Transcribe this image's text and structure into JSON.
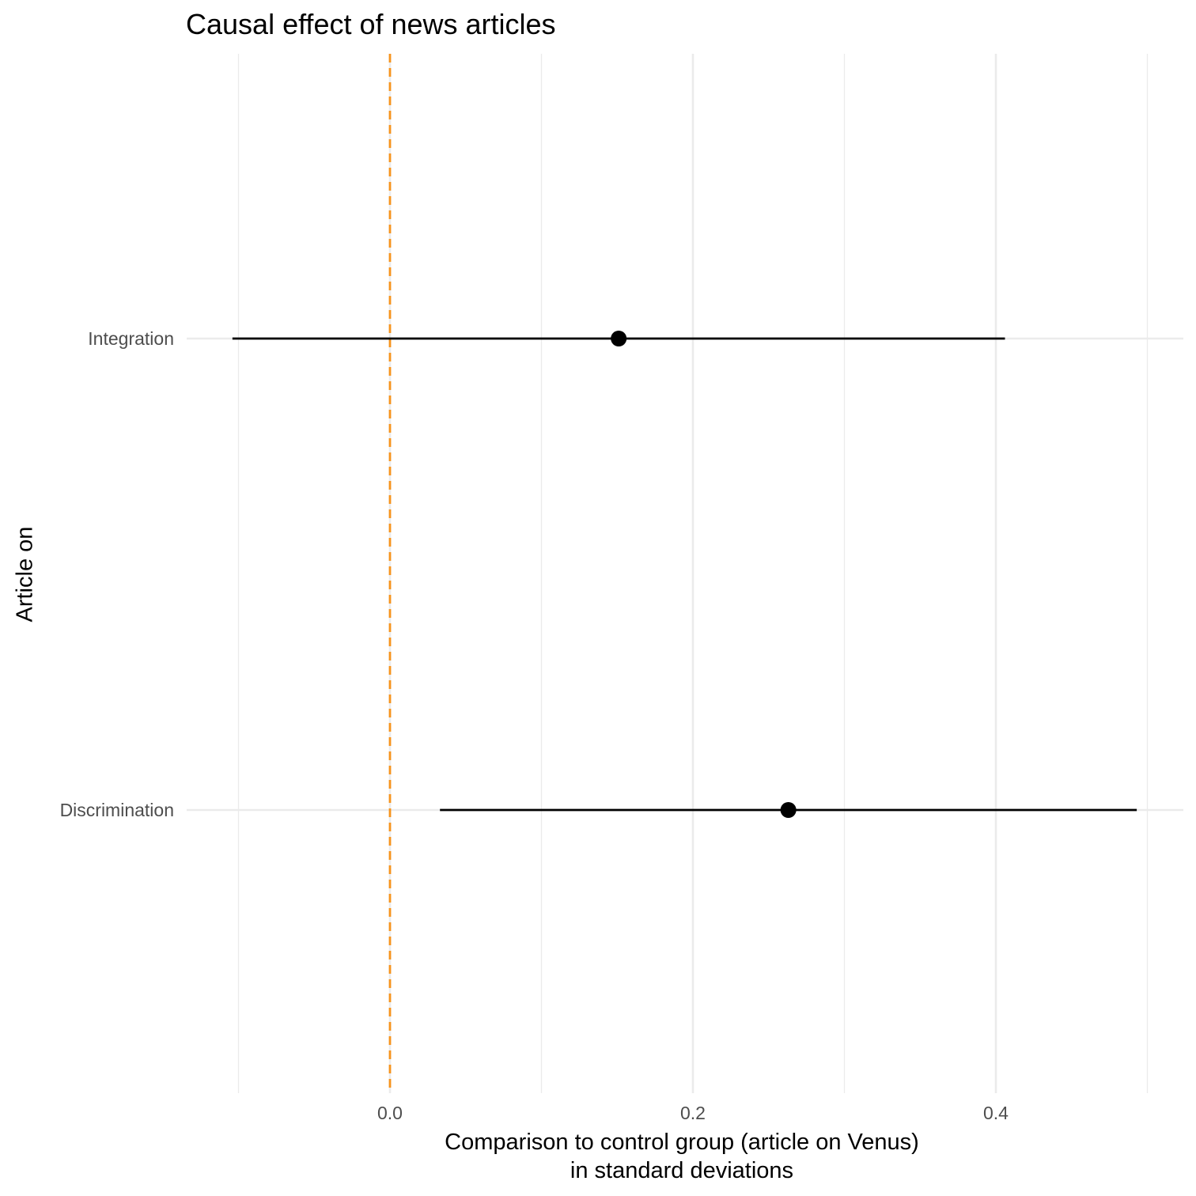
{
  "chart_data": {
    "type": "scatter",
    "title": "Causal effect of news articles",
    "xlabel_lines": [
      "Comparison to control group (article on Venus)",
      "in standard deviations"
    ],
    "ylabel": "Article on",
    "xlim": [
      -0.1,
      0.5
    ],
    "x_ticks": [
      0.0,
      0.2,
      0.4
    ],
    "x_tick_labels": [
      "0.0",
      "0.2",
      "0.4"
    ],
    "categories": [
      "Discrimination",
      "Integration"
    ],
    "points": [
      {
        "category": "Integration",
        "estimate": 0.151,
        "ci_low": -0.104,
        "ci_high": 0.406
      },
      {
        "category": "Discrimination",
        "estimate": 0.263,
        "ci_low": 0.033,
        "ci_high": 0.493
      }
    ],
    "reference_line": {
      "x": 0.0,
      "style": "dashed",
      "color": "#f7941d"
    },
    "grid": true,
    "legend": "none",
    "colors": {
      "point": "#000000",
      "gridline": "#ebebeb",
      "tick_text": "#4d4d4d"
    }
  }
}
